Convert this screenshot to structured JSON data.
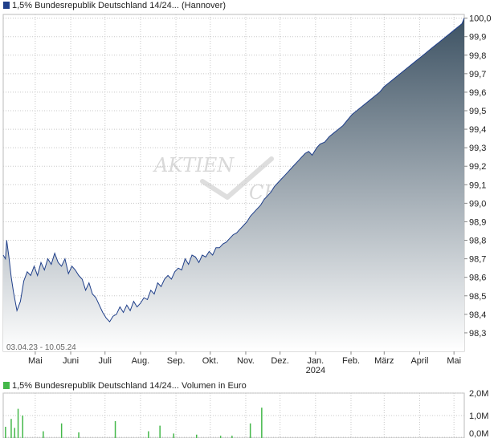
{
  "header": {
    "price_legend": "1,5% Bundesrepublik Deutschland 14/24... (Hannover)",
    "volume_legend": "1,5% Bundesrepublik Deutschland 14/24... Volumen in Euro",
    "date_range": "03.04.23 - 10.05.24",
    "watermark_line1": "AKTIEN",
    "watermark_line2": "CHECK"
  },
  "colors": {
    "price_line": "#1f3f8a",
    "area_top": "#3d5263",
    "area_bottom": "#ffffff",
    "volume_bar": "#44b84a",
    "grid": "#c8c8c8",
    "price_legend_swatch": "#1f3f8a",
    "volume_legend_swatch": "#44b84a"
  },
  "chart_data": [
    {
      "type": "area",
      "ylim": [
        98.2,
        100.02
      ],
      "y_ticks": [
        "100,0",
        "99,9",
        "99,8",
        "99,7",
        "99,6",
        "99,5",
        "99,4",
        "99,3",
        "99,2",
        "99,1",
        "99,0",
        "98,9",
        "98,8",
        "98,7",
        "98,6",
        "98,5",
        "98,4",
        "98,3"
      ],
      "y_tick_values": [
        100.0,
        99.9,
        99.8,
        99.7,
        99.6,
        99.5,
        99.4,
        99.3,
        99.2,
        99.1,
        99.0,
        98.9,
        98.8,
        98.7,
        98.6,
        98.5,
        98.4,
        98.3
      ],
      "x_range": [
        "2023-04-03",
        "2024-05-10"
      ],
      "x_ticks": [
        {
          "label": "Mai",
          "date": "2023-05-01"
        },
        {
          "label": "Juni",
          "date": "2023-06-01"
        },
        {
          "label": "Juli",
          "date": "2023-07-01"
        },
        {
          "label": "Aug.",
          "date": "2023-08-01"
        },
        {
          "label": "Sep.",
          "date": "2023-09-01"
        },
        {
          "label": "Okt.",
          "date": "2023-10-01"
        },
        {
          "label": "Nov.",
          "date": "2023-11-01"
        },
        {
          "label": "Dez.",
          "date": "2023-12-01"
        },
        {
          "label": "Jan.",
          "date": "2024-01-01",
          "sublabel": "2024"
        },
        {
          "label": "Feb.",
          "date": "2024-02-01"
        },
        {
          "label": "März",
          "date": "2024-03-01"
        },
        {
          "label": "April",
          "date": "2024-04-01"
        },
        {
          "label": "Mai",
          "date": "2024-05-01"
        }
      ],
      "series": [
        {
          "x": [
            "2023-04-03",
            "2023-04-05",
            "2023-04-06",
            "2023-04-08",
            "2023-04-10",
            "2023-04-12",
            "2023-04-15",
            "2023-04-18",
            "2023-04-21",
            "2023-04-24",
            "2023-04-27",
            "2023-04-30",
            "2023-05-03",
            "2023-05-06",
            "2023-05-09",
            "2023-05-12",
            "2023-05-15",
            "2023-05-18",
            "2023-05-21",
            "2023-05-24",
            "2023-05-27",
            "2023-05-30",
            "2023-06-02",
            "2023-06-05",
            "2023-06-08",
            "2023-06-11",
            "2023-06-14",
            "2023-06-17",
            "2023-06-20",
            "2023-06-23",
            "2023-06-26",
            "2023-06-29",
            "2023-07-02",
            "2023-07-05",
            "2023-07-08",
            "2023-07-11",
            "2023-07-14",
            "2023-07-17",
            "2023-07-20",
            "2023-07-23",
            "2023-07-26",
            "2023-07-29",
            "2023-08-01",
            "2023-08-04",
            "2023-08-07",
            "2023-08-10",
            "2023-08-13",
            "2023-08-16",
            "2023-08-19",
            "2023-08-22",
            "2023-08-25",
            "2023-08-28",
            "2023-08-31",
            "2023-09-03",
            "2023-09-06",
            "2023-09-09",
            "2023-09-12",
            "2023-09-15",
            "2023-09-18",
            "2023-09-21",
            "2023-09-24",
            "2023-09-27",
            "2023-09-30",
            "2023-10-03",
            "2023-10-06",
            "2023-10-09",
            "2023-10-12",
            "2023-10-15",
            "2023-10-18",
            "2023-10-21",
            "2023-10-24",
            "2023-10-27",
            "2023-10-30",
            "2023-11-02",
            "2023-11-05",
            "2023-11-08",
            "2023-11-11",
            "2023-11-14",
            "2023-11-17",
            "2023-11-20",
            "2023-11-23",
            "2023-11-26",
            "2023-11-29",
            "2023-12-02",
            "2023-12-05",
            "2023-12-08",
            "2023-12-11",
            "2023-12-14",
            "2023-12-17",
            "2023-12-20",
            "2023-12-23",
            "2023-12-26",
            "2023-12-29",
            "2024-01-02",
            "2024-01-05",
            "2024-01-09",
            "2024-01-13",
            "2024-01-17",
            "2024-01-21",
            "2024-01-25",
            "2024-01-29",
            "2024-02-02",
            "2024-02-06",
            "2024-02-10",
            "2024-02-14",
            "2024-02-18",
            "2024-02-22",
            "2024-02-26",
            "2024-03-01",
            "2024-03-05",
            "2024-03-09",
            "2024-03-13",
            "2024-03-17",
            "2024-03-21",
            "2024-03-25",
            "2024-03-29",
            "2024-04-02",
            "2024-04-06",
            "2024-04-10",
            "2024-04-14",
            "2024-04-18",
            "2024-04-22",
            "2024-04-26",
            "2024-04-30",
            "2024-05-04",
            "2024-05-08",
            "2024-05-10"
          ],
          "y": [
            98.72,
            98.7,
            98.8,
            98.71,
            98.6,
            98.52,
            98.42,
            98.47,
            98.58,
            98.63,
            98.61,
            98.66,
            98.61,
            98.68,
            98.64,
            98.7,
            98.67,
            98.73,
            98.68,
            98.66,
            98.7,
            98.62,
            98.66,
            98.64,
            98.61,
            98.59,
            98.53,
            98.57,
            98.51,
            98.49,
            98.45,
            98.41,
            98.38,
            98.36,
            98.39,
            98.4,
            98.44,
            98.41,
            98.45,
            98.42,
            98.47,
            98.44,
            98.46,
            98.49,
            98.48,
            98.53,
            98.51,
            98.57,
            98.55,
            98.59,
            98.61,
            98.59,
            98.63,
            98.65,
            98.64,
            98.7,
            98.67,
            98.72,
            98.71,
            98.68,
            98.72,
            98.71,
            98.74,
            98.72,
            98.76,
            98.76,
            98.78,
            98.79,
            98.81,
            98.83,
            98.84,
            98.86,
            98.88,
            98.9,
            98.93,
            98.95,
            98.97,
            98.99,
            99.02,
            99.04,
            99.06,
            99.09,
            99.11,
            99.13,
            99.15,
            99.17,
            99.19,
            99.21,
            99.23,
            99.25,
            99.27,
            99.28,
            99.26,
            99.3,
            99.32,
            99.33,
            99.36,
            99.38,
            99.4,
            99.42,
            99.45,
            99.48,
            99.5,
            99.52,
            99.54,
            99.56,
            99.58,
            99.6,
            99.63,
            99.65,
            99.67,
            99.69,
            99.71,
            99.73,
            99.75,
            99.77,
            99.79,
            99.81,
            99.83,
            99.85,
            99.87,
            99.89,
            99.91,
            99.93,
            99.95,
            99.97,
            100.0
          ]
        }
      ]
    },
    {
      "type": "bar",
      "ylim": [
        0,
        2.0
      ],
      "y_ticks": [
        "2,0M",
        "1,0M",
        "0,0M"
      ],
      "y_tick_values": [
        2.0,
        1.0,
        0.0
      ],
      "x_range": [
        "2023-04-03",
        "2024-05-10"
      ],
      "series": [
        {
          "x": [
            "2023-04-05",
            "2023-04-10",
            "2023-04-13",
            "2023-04-16",
            "2023-04-20",
            "2023-05-08",
            "2023-05-24",
            "2023-06-08",
            "2023-07-10",
            "2023-08-08",
            "2023-08-18",
            "2023-08-30",
            "2023-09-19",
            "2023-10-10",
            "2023-10-20",
            "2023-11-05",
            "2023-11-15"
          ],
          "y": [
            0.5,
            0.85,
            0.45,
            1.3,
            1.0,
            0.3,
            0.65,
            0.25,
            0.75,
            0.3,
            0.55,
            0.2,
            0.15,
            0.1,
            0.1,
            0.65,
            1.35
          ]
        }
      ]
    }
  ]
}
